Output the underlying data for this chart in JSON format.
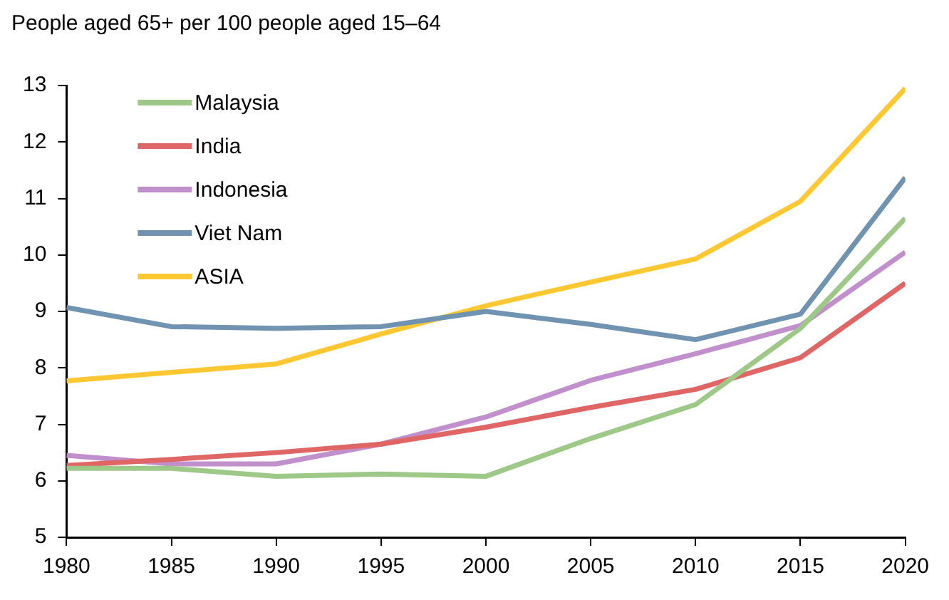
{
  "chart_data": {
    "type": "line",
    "title": "People aged 65+ per 100 people aged 15–64",
    "x": [
      1980,
      1985,
      1990,
      1995,
      2000,
      2005,
      2010,
      2015,
      2020
    ],
    "series": [
      {
        "name": "Malaysia",
        "color": "#9dc888",
        "values": [
          6.22,
          6.22,
          6.08,
          6.12,
          6.08,
          6.75,
          7.35,
          8.7,
          10.65
        ]
      },
      {
        "name": "India",
        "color": "#e06666",
        "values": [
          6.27,
          6.38,
          6.5,
          6.65,
          6.95,
          7.3,
          7.62,
          8.18,
          9.5
        ]
      },
      {
        "name": "Indonesia",
        "color": "#c08fcc",
        "values": [
          6.45,
          6.3,
          6.3,
          6.65,
          7.13,
          7.78,
          8.25,
          8.75,
          10.05
        ]
      },
      {
        "name": "Viet Nam",
        "color": "#6f93b0",
        "values": [
          9.07,
          8.73,
          8.7,
          8.73,
          9.0,
          8.77,
          8.5,
          8.95,
          11.37
        ]
      },
      {
        "name": "ASIA",
        "color": "#ffc832",
        "values": [
          7.77,
          7.92,
          8.07,
          8.6,
          9.1,
          9.52,
          9.93,
          10.95,
          12.95
        ]
      }
    ],
    "xlim": [
      1980,
      2020
    ],
    "xticks": [
      1980,
      1985,
      1990,
      1995,
      2000,
      2005,
      2010,
      2015,
      2020
    ],
    "ylim": [
      5,
      13
    ],
    "yticks": [
      5,
      6,
      7,
      8,
      9,
      10,
      11,
      12,
      13
    ],
    "grid": false,
    "legend": "top left",
    "marker": "none",
    "line_style": "solid"
  }
}
